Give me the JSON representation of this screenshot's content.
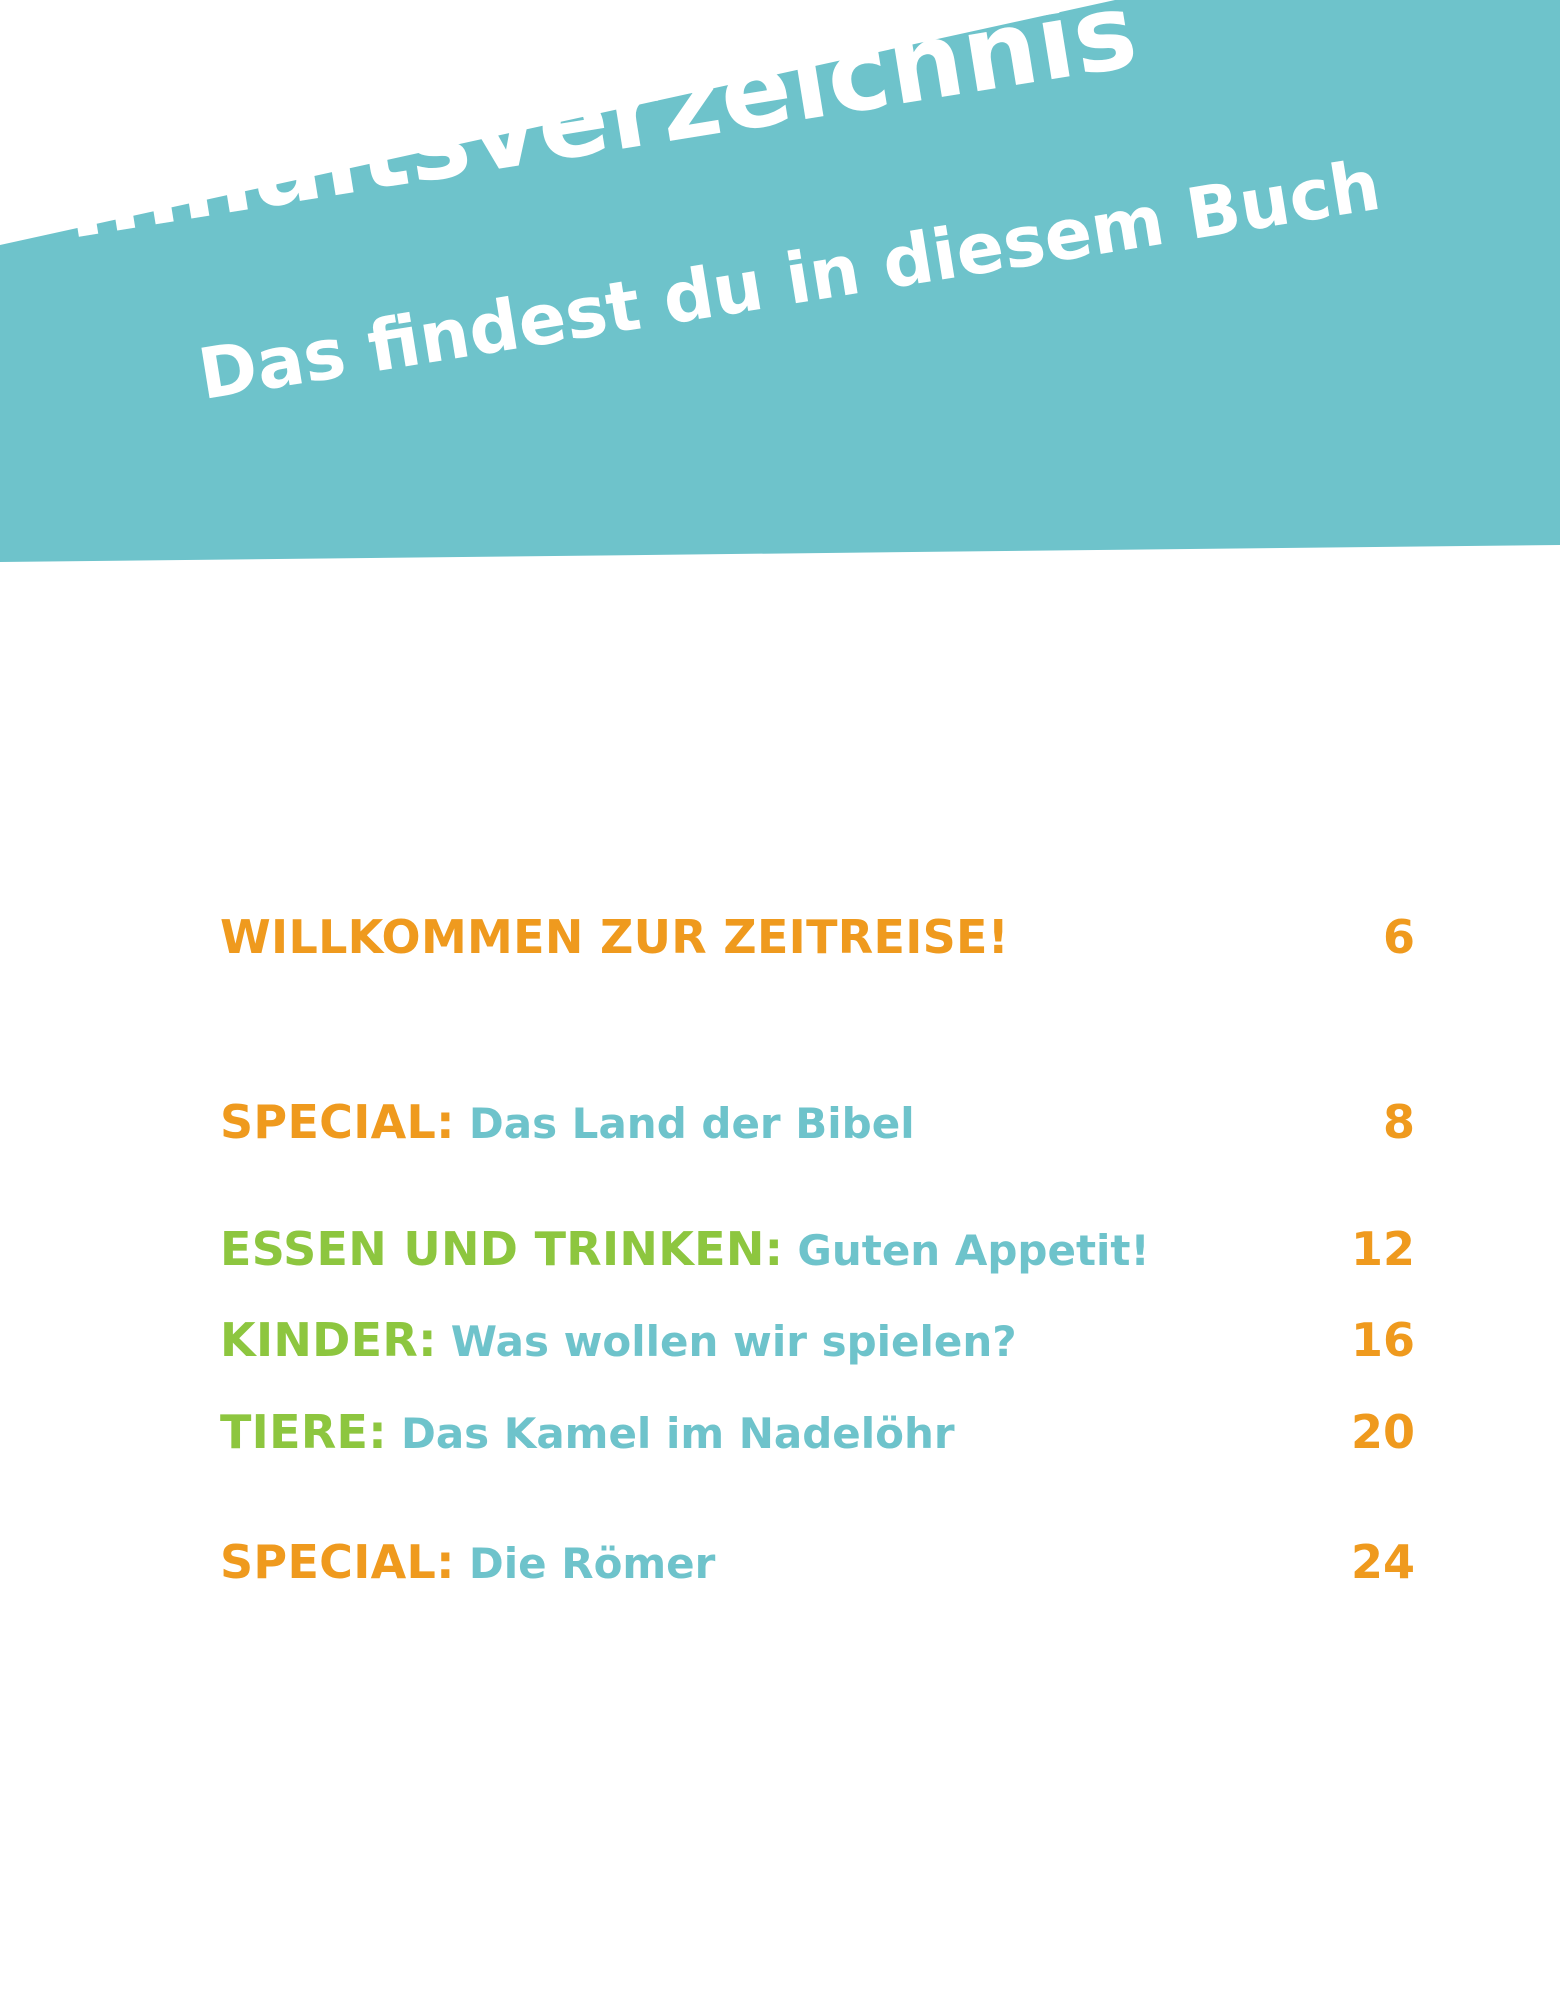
{
  "header": {
    "title": "Inhaltsverzeichnis",
    "subtitle": "Das findest du in diesem Buch",
    "banner_color": "#6ec3cb",
    "text_color": "#ffffff"
  },
  "colors": {
    "orange": "#ef9a1e",
    "green": "#8dc63f",
    "teal": "#6ec3cb"
  },
  "toc": [
    {
      "label": "WILLKOMMEN ZUR ZEITREISE!",
      "subtitle": "",
      "page": "6"
    },
    {
      "label": "SPECIAL:",
      "subtitle": "Das Land der Bibel",
      "page": "8"
    },
    {
      "label": "ESSEN UND TRINKEN:",
      "subtitle": "Guten Appetit!",
      "page": "12"
    },
    {
      "label": "KINDER:",
      "subtitle": "Was wollen wir spielen?",
      "page": "16"
    },
    {
      "label": "TIERE:",
      "subtitle": "Das Kamel im Nadelöhr",
      "page": "20"
    },
    {
      "label": "SPECIAL:",
      "subtitle": "Die Römer",
      "page": "24"
    }
  ]
}
